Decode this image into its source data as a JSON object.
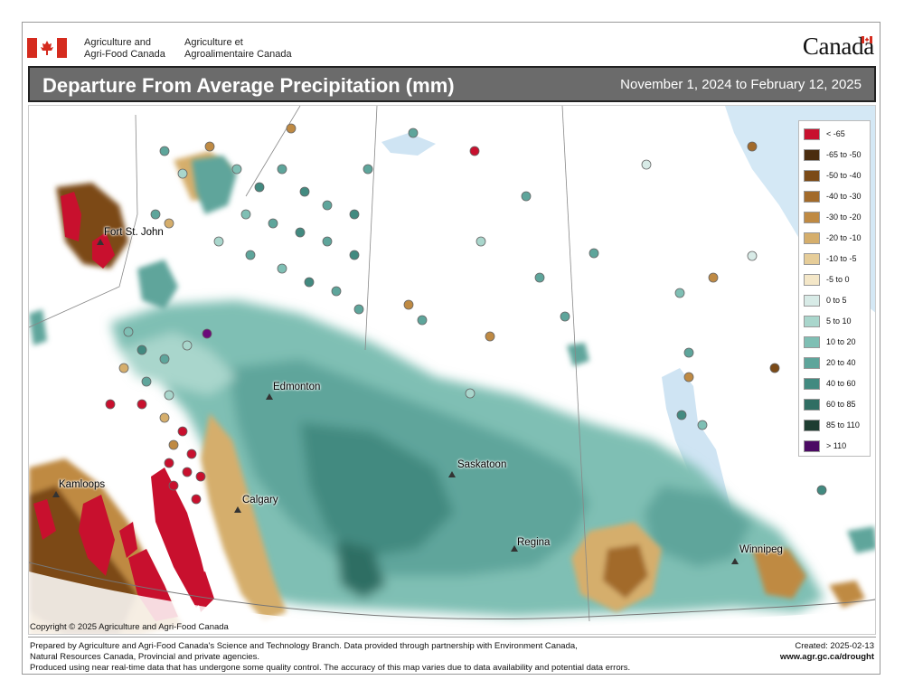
{
  "header": {
    "gov_en": "Agriculture and\nAgri-Food Canada",
    "gov_fr": "Agriculture et\nAgroalimentaire Canada",
    "wordmark": "Canada",
    "title": "Departure From Average Precipitation (mm)",
    "period": "November 1, 2024 to February 12, 2025"
  },
  "legend": {
    "items": [
      {
        "label": "< -65",
        "color": "#c8102e"
      },
      {
        "label": "-65 to -50",
        "color": "#4a2c0e"
      },
      {
        "label": "-50 to -40",
        "color": "#7b4a17"
      },
      {
        "label": "-40 to -30",
        "color": "#a26a2a"
      },
      {
        "label": "-30 to -20",
        "color": "#bf8a43"
      },
      {
        "label": "-20 to -10",
        "color": "#d5ae6c"
      },
      {
        "label": "-10 to -5",
        "color": "#e6cd99"
      },
      {
        "label": "-5 to 0",
        "color": "#f4e7c8"
      },
      {
        "label": "0 to 5",
        "color": "#d8ebe7"
      },
      {
        "label": "5 to 10",
        "color": "#a9d6cc"
      },
      {
        "label": "10 to 20",
        "color": "#7fbfb4"
      },
      {
        "label": "20 to 40",
        "color": "#5ea59b"
      },
      {
        "label": "40 to 60",
        "color": "#428a80"
      },
      {
        "label": "60 to 85",
        "color": "#2f6e63"
      },
      {
        "label": "85 to 110",
        "color": "#1e3d31"
      },
      {
        "label": "> 110",
        "color": "#4b0a63"
      }
    ]
  },
  "cities": [
    {
      "name": "Fort St. John"
    },
    {
      "name": "Edmonton"
    },
    {
      "name": "Kamloops"
    },
    {
      "name": "Calgary"
    },
    {
      "name": "Saskatoon"
    },
    {
      "name": "Regina"
    },
    {
      "name": "Winnipeg"
    }
  ],
  "footer": {
    "copyright": "Copyright © 2025 Agriculture and Agri-Food Canada",
    "line1": "Prepared by Agriculture and Agri-Food Canada's Science and Technology Branch. Data provided through partnership with Environment Canada,",
    "line2": "Natural Resources Canada, Provincial and private agencies.",
    "line3": "Produced using near real-time data that has undergone some quality control. The accuracy of this map varies due to data availability and potential data errors.",
    "created": "Created: 2025-02-13",
    "url": "www.agr.gc.ca/drought"
  }
}
